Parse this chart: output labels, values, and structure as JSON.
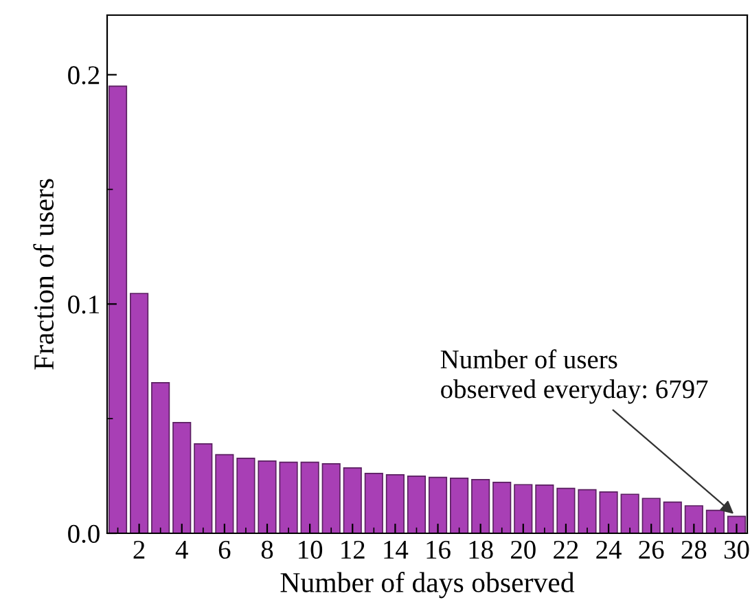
{
  "chart_data": {
    "type": "bar",
    "xlabel": "Number of days observed",
    "ylabel": "Fraction of users",
    "x": [
      1,
      2,
      3,
      4,
      5,
      6,
      7,
      8,
      9,
      10,
      11,
      12,
      13,
      14,
      15,
      16,
      17,
      18,
      19,
      20,
      21,
      22,
      23,
      24,
      25,
      26,
      27,
      28,
      29,
      30
    ],
    "values": [
      0.195,
      0.1046,
      0.0657,
      0.0483,
      0.039,
      0.0343,
      0.0327,
      0.0315,
      0.031,
      0.031,
      0.0303,
      0.0285,
      0.0261,
      0.0255,
      0.0249,
      0.0244,
      0.024,
      0.0234,
      0.0222,
      0.0212,
      0.021,
      0.0196,
      0.019,
      0.018,
      0.017,
      0.0152,
      0.0136,
      0.012,
      0.01,
      0.0074
    ],
    "color": "#a83fb5",
    "xlim": [
      0.5,
      30.5
    ],
    "xticks": [
      2,
      4,
      6,
      8,
      10,
      12,
      14,
      16,
      18,
      20,
      22,
      24,
      26,
      28,
      30
    ],
    "ylim": [
      0,
      0.226
    ],
    "yticks": [
      {
        "value": 0,
        "label": "0.0"
      },
      0.1,
      0.2
    ],
    "grid": false,
    "annotations": [
      {
        "text": "Number of users\nobserved everyday: 6797",
        "x": 30,
        "y": 0.0074
      }
    ]
  }
}
